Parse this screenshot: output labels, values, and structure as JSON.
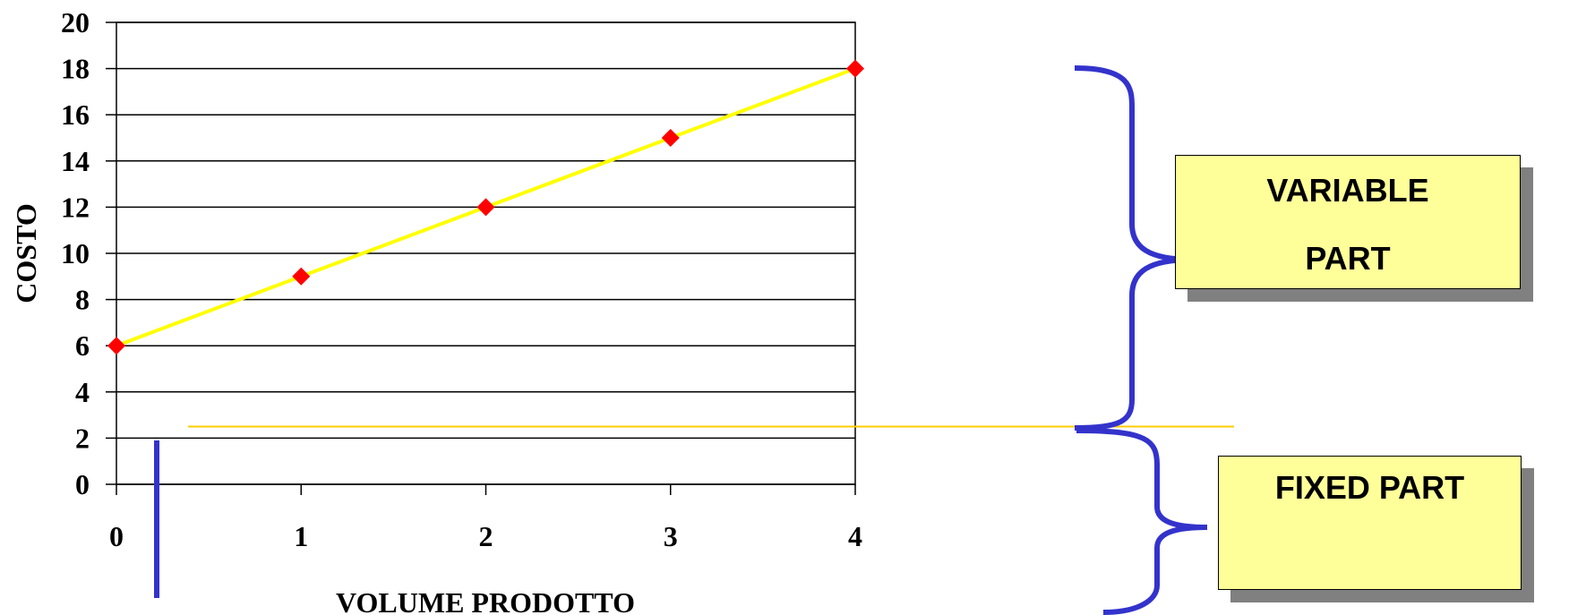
{
  "chart_data": {
    "type": "line",
    "x": [
      0,
      1,
      2,
      3,
      4
    ],
    "series": [
      {
        "values": [
          6,
          9,
          12,
          15,
          18
        ]
      }
    ],
    "categories": [
      "0",
      "1",
      "2",
      "3",
      "4"
    ],
    "yticks": [
      "0",
      "2",
      "4",
      "6",
      "8",
      "10",
      "12",
      "14",
      "16",
      "18",
      "20"
    ],
    "xlabel": "VOLUME PRODOTTO",
    "ylabel": "COSTO",
    "xlim": [
      0,
      4
    ],
    "ylim": [
      0,
      20
    ],
    "grid": "horizontal",
    "fixed_cost_level": 2.5,
    "line_color": "#ffff00",
    "marker_color": "#ff0000"
  },
  "annotations": {
    "variable_part_line1": "VARIABLE",
    "variable_part_line2": "PART",
    "fixed_part": "FIXED PART",
    "box_color": "#ffff99",
    "brace_color": "#3333cc",
    "fixed_line_color": "#ffcc00"
  }
}
